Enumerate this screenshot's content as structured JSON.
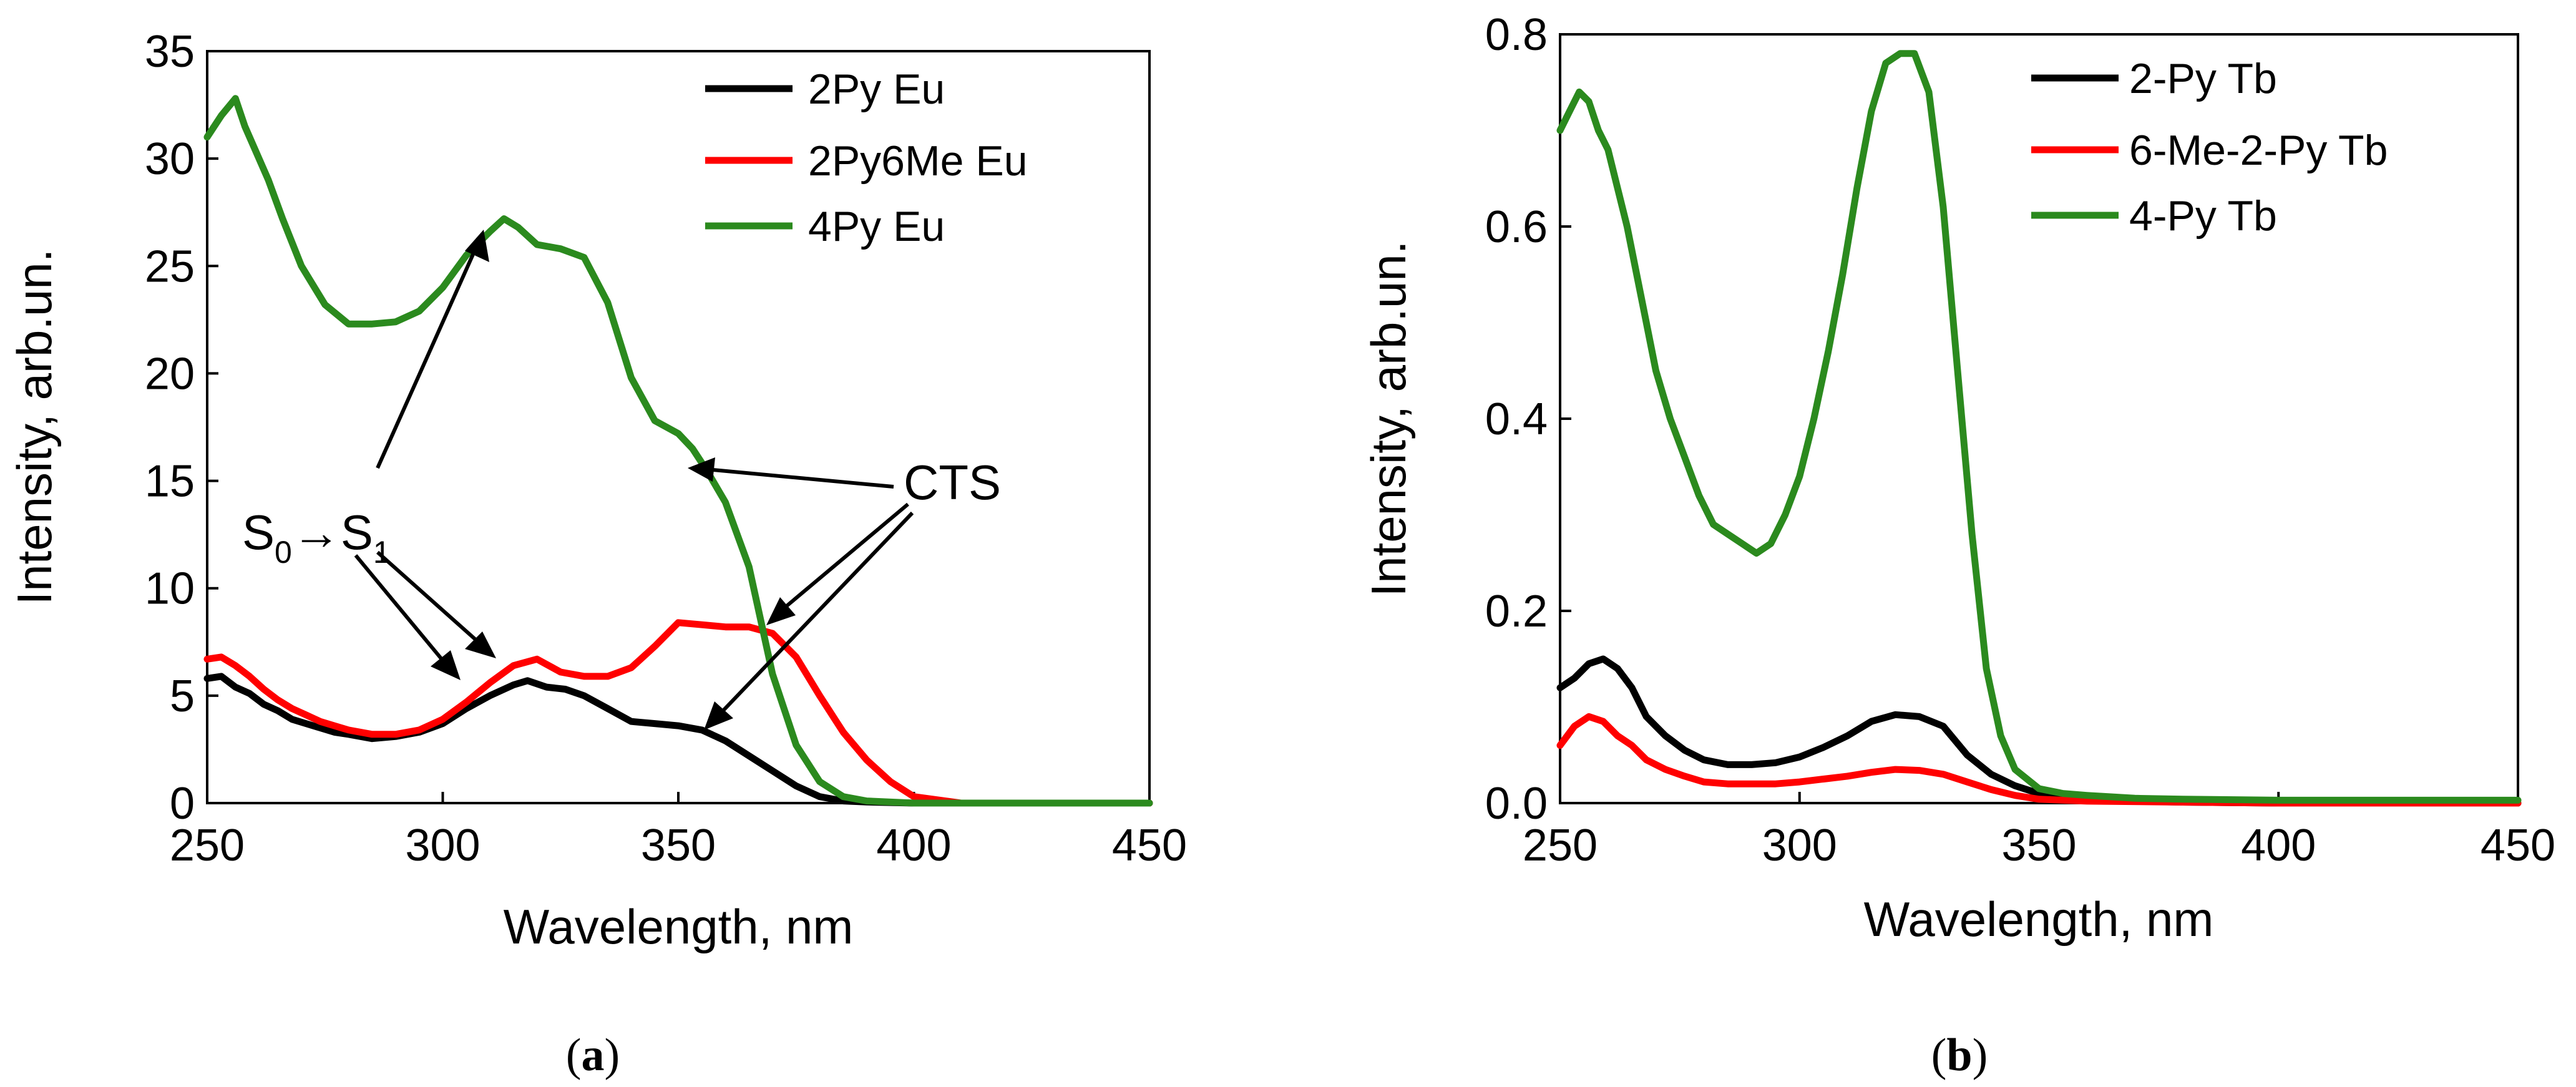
{
  "chart_data": [
    {
      "type": "line",
      "panel": "a",
      "caption_letter": "a",
      "xlabel": "Wavelength, nm",
      "ylabel": "Intensity, arb.un.",
      "xlim": [
        250,
        450
      ],
      "ylim": [
        0,
        35
      ],
      "x_ticks": [
        "250",
        "300",
        "350",
        "400",
        "450"
      ],
      "y_ticks": [
        "0",
        "5",
        "10",
        "15",
        "20",
        "25",
        "30",
        "35"
      ],
      "legend_position": "top-right",
      "series": [
        {
          "name": "2Py Eu",
          "color": "#000000",
          "x": [
            250,
            253,
            256,
            259,
            262,
            265,
            268,
            271,
            274,
            277,
            280,
            285,
            290,
            295,
            300,
            305,
            310,
            315,
            318,
            322,
            326,
            330,
            335,
            340,
            345,
            350,
            355,
            360,
            365,
            370,
            375,
            380,
            385,
            390,
            400,
            420,
            450
          ],
          "y": [
            5.8,
            5.9,
            5.4,
            5.1,
            4.6,
            4.3,
            3.9,
            3.7,
            3.5,
            3.3,
            3.2,
            3.0,
            3.1,
            3.3,
            3.7,
            4.4,
            5.0,
            5.5,
            5.7,
            5.4,
            5.3,
            5.0,
            4.4,
            3.8,
            3.7,
            3.6,
            3.4,
            2.9,
            2.2,
            1.5,
            0.8,
            0.3,
            0.1,
            0.05,
            0,
            0,
            0
          ]
        },
        {
          "name": "2Py6Me Eu",
          "color": "#ff0000",
          "x": [
            250,
            253,
            256,
            259,
            262,
            265,
            268,
            271,
            274,
            277,
            280,
            285,
            290,
            295,
            300,
            305,
            310,
            315,
            320,
            325,
            330,
            335,
            340,
            345,
            350,
            355,
            360,
            365,
            370,
            375,
            380,
            385,
            390,
            395,
            400,
            410,
            450
          ],
          "y": [
            6.7,
            6.8,
            6.4,
            5.9,
            5.3,
            4.8,
            4.4,
            4.1,
            3.8,
            3.6,
            3.4,
            3.2,
            3.2,
            3.4,
            3.9,
            4.7,
            5.6,
            6.4,
            6.7,
            6.1,
            5.9,
            5.9,
            6.3,
            7.3,
            8.4,
            8.3,
            8.2,
            8.2,
            7.9,
            6.8,
            5.0,
            3.3,
            2.0,
            1.0,
            0.3,
            0,
            0
          ]
        },
        {
          "name": "4Py Eu",
          "color": "#2b8a1e",
          "x": [
            250,
            253,
            256,
            258,
            260,
            263,
            266,
            270,
            275,
            280,
            285,
            290,
            295,
            300,
            305,
            310,
            313,
            316,
            320,
            325,
            330,
            335,
            340,
            345,
            350,
            353,
            356,
            360,
            365,
            370,
            375,
            380,
            385,
            390,
            400,
            450
          ],
          "y": [
            31.0,
            32.0,
            32.8,
            31.5,
            30.5,
            29.0,
            27.2,
            25.0,
            23.2,
            22.3,
            22.3,
            22.4,
            22.9,
            24.0,
            25.5,
            26.6,
            27.2,
            26.8,
            26.0,
            25.8,
            25.4,
            23.3,
            19.8,
            17.8,
            17.2,
            16.5,
            15.5,
            14.0,
            11.0,
            6.0,
            2.7,
            1.0,
            0.3,
            0.1,
            0,
            0
          ]
        }
      ],
      "annotations": [
        {
          "text_main": "S",
          "sub": "0",
          "arrow": "→",
          "text_main2": "S",
          "sub2": "1"
        },
        {
          "text": "CTS"
        }
      ]
    },
    {
      "type": "line",
      "panel": "b",
      "caption_letter": "b",
      "xlabel": "Wavelength, nm",
      "ylabel": "Intensity, arb.un.",
      "xlim": [
        250,
        450
      ],
      "ylim": [
        0,
        0.8
      ],
      "x_ticks": [
        "250",
        "300",
        "350",
        "400",
        "450"
      ],
      "y_ticks": [
        "0.0",
        "0.2",
        "0.4",
        "0.6",
        "0.8"
      ],
      "legend_position": "top-right",
      "series": [
        {
          "name": "2-Py Tb",
          "color": "#000000",
          "x": [
            250,
            253,
            256,
            259,
            262,
            265,
            268,
            272,
            276,
            280,
            285,
            290,
            295,
            300,
            305,
            310,
            315,
            320,
            325,
            330,
            335,
            340,
            345,
            350,
            355,
            360,
            370,
            380,
            400,
            450
          ],
          "y": [
            0.12,
            0.13,
            0.145,
            0.15,
            0.14,
            0.12,
            0.09,
            0.07,
            0.055,
            0.045,
            0.04,
            0.04,
            0.042,
            0.048,
            0.058,
            0.07,
            0.085,
            0.092,
            0.09,
            0.08,
            0.05,
            0.03,
            0.018,
            0.01,
            0.006,
            0.004,
            0.002,
            0.001,
            0,
            0
          ]
        },
        {
          "name": "6-Me-2-Py Tb",
          "color": "#ff0000",
          "x": [
            250,
            253,
            256,
            259,
            262,
            265,
            268,
            272,
            276,
            280,
            285,
            290,
            295,
            300,
            305,
            310,
            315,
            320,
            325,
            330,
            335,
            340,
            345,
            350,
            360,
            380,
            400,
            450
          ],
          "y": [
            0.06,
            0.08,
            0.09,
            0.085,
            0.07,
            0.06,
            0.045,
            0.035,
            0.028,
            0.022,
            0.02,
            0.02,
            0.02,
            0.022,
            0.025,
            0.028,
            0.032,
            0.035,
            0.034,
            0.03,
            0.022,
            0.014,
            0.008,
            0.004,
            0.002,
            0.001,
            0,
            0
          ]
        },
        {
          "name": "4-Py Tb",
          "color": "#2b8a1e",
          "x": [
            250,
            252,
            254,
            256,
            258,
            260,
            262,
            264,
            266,
            268,
            270,
            273,
            276,
            279,
            282,
            285,
            288,
            291,
            294,
            297,
            300,
            303,
            306,
            309,
            312,
            315,
            318,
            321,
            324,
            327,
            330,
            333,
            336,
            339,
            342,
            345,
            350,
            355,
            360,
            370,
            380,
            400,
            450
          ],
          "y": [
            0.7,
            0.72,
            0.74,
            0.73,
            0.7,
            0.68,
            0.64,
            0.6,
            0.55,
            0.5,
            0.45,
            0.4,
            0.36,
            0.32,
            0.29,
            0.28,
            0.27,
            0.26,
            0.27,
            0.3,
            0.34,
            0.4,
            0.47,
            0.55,
            0.64,
            0.72,
            0.77,
            0.78,
            0.78,
            0.74,
            0.62,
            0.45,
            0.28,
            0.14,
            0.07,
            0.035,
            0.015,
            0.01,
            0.008,
            0.005,
            0.004,
            0.003,
            0.003
          ]
        }
      ]
    }
  ]
}
